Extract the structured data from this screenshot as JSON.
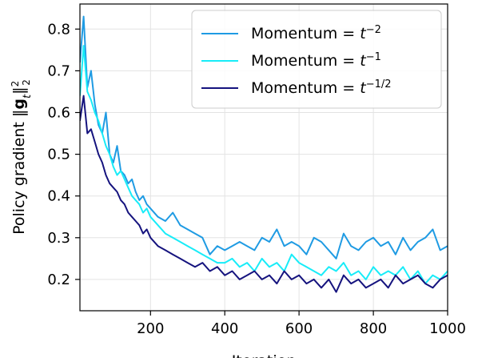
{
  "chart_data": {
    "type": "line",
    "xlabel": "Iteration",
    "ylabel": "Policy gradient ‖gₜ‖₂²",
    "xlim": [
      10,
      1000
    ],
    "ylim": [
      0.125,
      0.86
    ],
    "xticks": [
      200,
      400,
      600,
      800,
      1000
    ],
    "yticks": [
      0.2,
      0.3,
      0.4,
      0.5,
      0.6,
      0.7,
      0.8
    ],
    "grid": true,
    "legend_position": "top-right",
    "series": [
      {
        "name": "Momentum = t⁻²",
        "color": "#1f9be3",
        "x": [
          10,
          20,
          30,
          40,
          50,
          60,
          70,
          80,
          90,
          100,
          110,
          120,
          130,
          140,
          150,
          160,
          170,
          180,
          190,
          200,
          220,
          240,
          260,
          280,
          300,
          320,
          340,
          360,
          380,
          400,
          420,
          440,
          460,
          480,
          500,
          520,
          540,
          560,
          580,
          600,
          620,
          640,
          660,
          680,
          700,
          720,
          740,
          760,
          780,
          800,
          820,
          840,
          860,
          880,
          900,
          920,
          940,
          960,
          980,
          1000
        ],
        "values": [
          0.72,
          0.83,
          0.66,
          0.7,
          0.62,
          0.57,
          0.55,
          0.6,
          0.5,
          0.48,
          0.52,
          0.46,
          0.45,
          0.43,
          0.44,
          0.41,
          0.39,
          0.4,
          0.38,
          0.37,
          0.35,
          0.34,
          0.36,
          0.33,
          0.32,
          0.31,
          0.3,
          0.26,
          0.28,
          0.27,
          0.28,
          0.29,
          0.28,
          0.27,
          0.3,
          0.29,
          0.32,
          0.28,
          0.29,
          0.28,
          0.26,
          0.3,
          0.29,
          0.27,
          0.25,
          0.31,
          0.28,
          0.27,
          0.29,
          0.3,
          0.28,
          0.29,
          0.26,
          0.3,
          0.27,
          0.29,
          0.3,
          0.32,
          0.27,
          0.28
        ]
      },
      {
        "name": "Momentum = t⁻¹",
        "color": "#18ecf8",
        "x": [
          10,
          20,
          30,
          40,
          50,
          60,
          70,
          80,
          90,
          100,
          110,
          120,
          130,
          140,
          150,
          160,
          170,
          180,
          190,
          200,
          220,
          240,
          260,
          280,
          300,
          320,
          340,
          360,
          380,
          400,
          420,
          440,
          460,
          480,
          500,
          520,
          540,
          560,
          580,
          600,
          620,
          640,
          660,
          680,
          700,
          720,
          740,
          760,
          780,
          800,
          820,
          840,
          860,
          880,
          900,
          920,
          940,
          960,
          980,
          1000
        ],
        "values": [
          0.64,
          0.76,
          0.65,
          0.63,
          0.6,
          0.58,
          0.55,
          0.52,
          0.5,
          0.47,
          0.45,
          0.46,
          0.44,
          0.42,
          0.4,
          0.39,
          0.38,
          0.36,
          0.37,
          0.35,
          0.33,
          0.31,
          0.3,
          0.29,
          0.28,
          0.27,
          0.26,
          0.25,
          0.24,
          0.24,
          0.25,
          0.23,
          0.24,
          0.22,
          0.25,
          0.23,
          0.24,
          0.22,
          0.26,
          0.24,
          0.23,
          0.22,
          0.21,
          0.23,
          0.22,
          0.24,
          0.21,
          0.22,
          0.2,
          0.23,
          0.21,
          0.22,
          0.21,
          0.23,
          0.2,
          0.22,
          0.19,
          0.21,
          0.2,
          0.22
        ]
      },
      {
        "name": "Momentum = t⁻¹ᐟ²",
        "color": "#15137e",
        "x": [
          10,
          20,
          30,
          40,
          50,
          60,
          70,
          80,
          90,
          100,
          110,
          120,
          130,
          140,
          150,
          160,
          170,
          180,
          190,
          200,
          220,
          240,
          260,
          280,
          300,
          320,
          340,
          360,
          380,
          400,
          420,
          440,
          460,
          480,
          500,
          520,
          540,
          560,
          580,
          600,
          620,
          640,
          660,
          680,
          700,
          720,
          740,
          760,
          780,
          800,
          820,
          840,
          860,
          880,
          900,
          920,
          940,
          960,
          980,
          1000
        ],
        "values": [
          0.58,
          0.64,
          0.55,
          0.56,
          0.53,
          0.5,
          0.48,
          0.45,
          0.43,
          0.42,
          0.41,
          0.39,
          0.38,
          0.36,
          0.35,
          0.34,
          0.33,
          0.31,
          0.32,
          0.3,
          0.28,
          0.27,
          0.26,
          0.25,
          0.24,
          0.23,
          0.24,
          0.22,
          0.23,
          0.21,
          0.22,
          0.2,
          0.21,
          0.22,
          0.2,
          0.21,
          0.19,
          0.22,
          0.2,
          0.21,
          0.19,
          0.2,
          0.18,
          0.2,
          0.17,
          0.21,
          0.19,
          0.2,
          0.18,
          0.19,
          0.2,
          0.18,
          0.21,
          0.19,
          0.2,
          0.21,
          0.19,
          0.18,
          0.2,
          0.21
        ]
      }
    ]
  }
}
